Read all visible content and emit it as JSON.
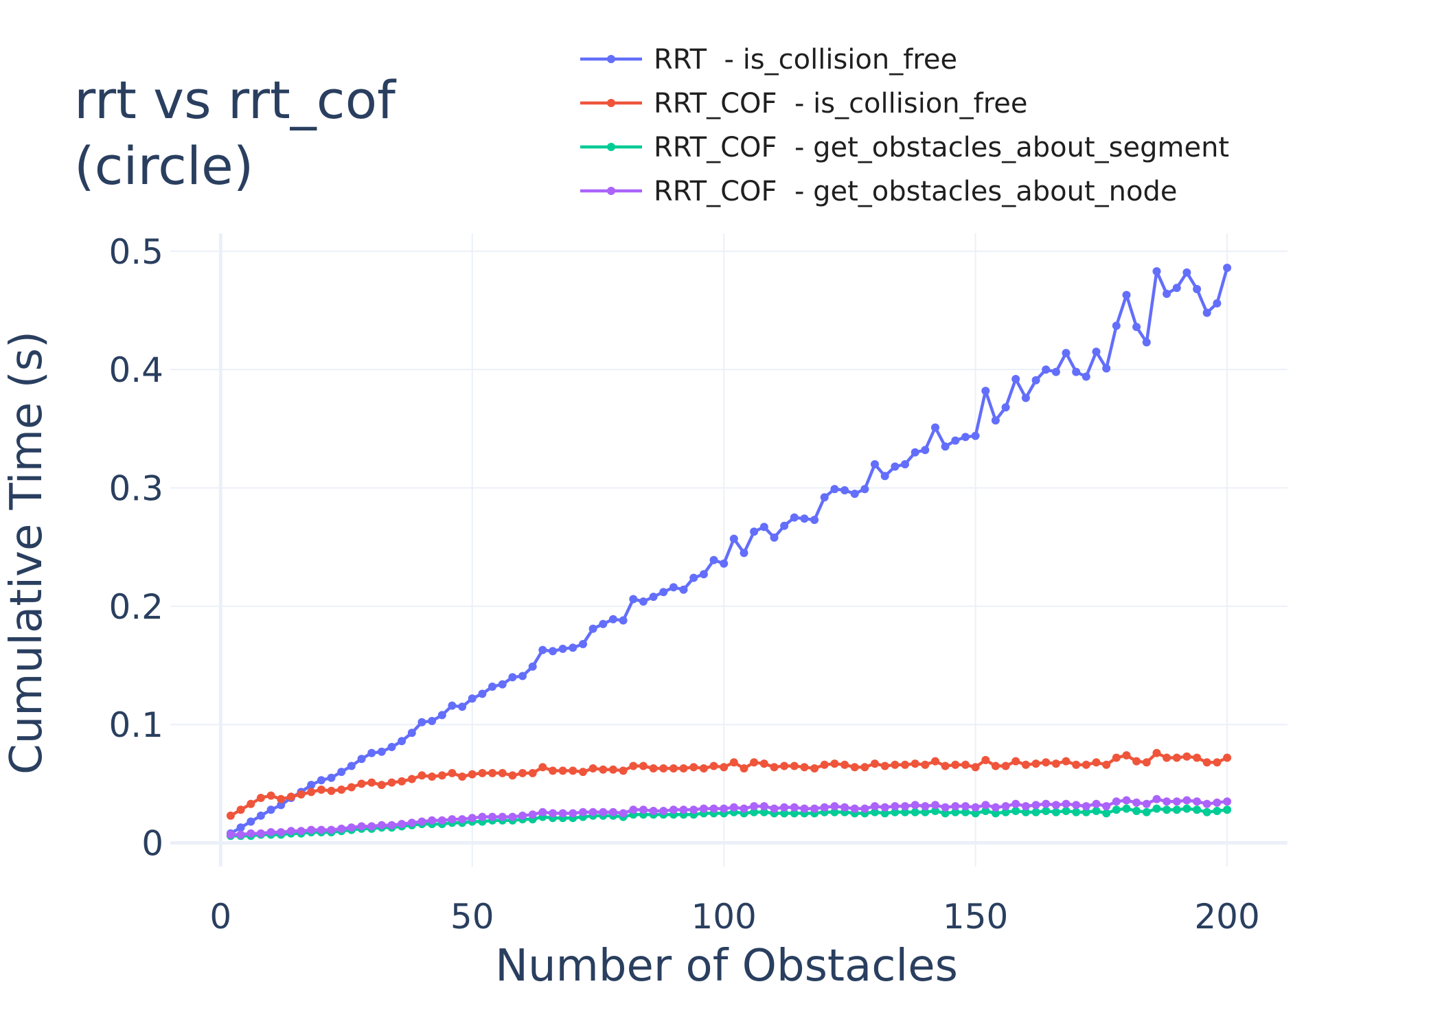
{
  "chart_data": {
    "type": "line",
    "title": [
      "rrt vs rrt_cof",
      "(circle)"
    ],
    "xlabel": "Number of Obstacles",
    "ylabel": "Cumulative Time (s)",
    "xlim": [
      -10,
      212
    ],
    "ylim": [
      -0.02,
      0.515
    ],
    "xticks": [
      {
        "value": 0,
        "label": "0"
      },
      {
        "value": 50,
        "label": "50"
      },
      {
        "value": 100,
        "label": "100"
      },
      {
        "value": 150,
        "label": "150"
      },
      {
        "value": 200,
        "label": "200"
      }
    ],
    "yticks": [
      {
        "value": 0,
        "label": "0"
      },
      {
        "value": 0.1,
        "label": "0.1"
      },
      {
        "value": 0.2,
        "label": "0.2"
      },
      {
        "value": 0.3,
        "label": "0.3"
      },
      {
        "value": 0.4,
        "label": "0.4"
      },
      {
        "value": 0.5,
        "label": "0.5"
      }
    ],
    "grid": true,
    "legend_position": "top",
    "x": [
      2,
      4,
      6,
      8,
      10,
      12,
      14,
      16,
      18,
      20,
      22,
      24,
      26,
      28,
      30,
      32,
      34,
      36,
      38,
      40,
      42,
      44,
      46,
      48,
      50,
      52,
      54,
      56,
      58,
      60,
      62,
      64,
      66,
      68,
      70,
      72,
      74,
      76,
      78,
      80,
      82,
      84,
      86,
      88,
      90,
      92,
      94,
      96,
      98,
      100,
      102,
      104,
      106,
      108,
      110,
      112,
      114,
      116,
      118,
      120,
      122,
      124,
      126,
      128,
      130,
      132,
      134,
      136,
      138,
      140,
      142,
      144,
      146,
      148,
      150,
      152,
      154,
      156,
      158,
      160,
      162,
      164,
      166,
      168,
      170,
      172,
      174,
      176,
      178,
      180,
      182,
      184,
      186,
      188,
      190,
      192,
      194,
      196,
      198,
      200
    ],
    "series": [
      {
        "name": "RRT  - is_collision_free",
        "color": "#636efa",
        "values": [
          0.008,
          0.013,
          0.018,
          0.023,
          0.028,
          0.032,
          0.038,
          0.043,
          0.049,
          0.053,
          0.055,
          0.06,
          0.065,
          0.071,
          0.076,
          0.077,
          0.081,
          0.086,
          0.093,
          0.102,
          0.103,
          0.108,
          0.116,
          0.115,
          0.122,
          0.126,
          0.132,
          0.134,
          0.14,
          0.141,
          0.149,
          0.163,
          0.162,
          0.164,
          0.165,
          0.168,
          0.181,
          0.185,
          0.189,
          0.188,
          0.206,
          0.204,
          0.208,
          0.212,
          0.216,
          0.214,
          0.224,
          0.227,
          0.239,
          0.236,
          0.257,
          0.245,
          0.263,
          0.267,
          0.258,
          0.268,
          0.275,
          0.274,
          0.273,
          0.292,
          0.299,
          0.298,
          0.295,
          0.299,
          0.32,
          0.31,
          0.318,
          0.32,
          0.33,
          0.332,
          0.351,
          0.335,
          0.34,
          0.343,
          0.344,
          0.382,
          0.357,
          0.368,
          0.392,
          0.376,
          0.391,
          0.4,
          0.398,
          0.414,
          0.398,
          0.394,
          0.415,
          0.401,
          0.437,
          0.463,
          0.436,
          0.423,
          0.483,
          0.464,
          0.469,
          0.482,
          0.468,
          0.448,
          0.456,
          0.486
        ]
      },
      {
        "name": "RRT_COF  - is_collision_free",
        "color": "#ef553b",
        "values": [
          0.023,
          0.028,
          0.033,
          0.038,
          0.04,
          0.037,
          0.039,
          0.041,
          0.043,
          0.045,
          0.044,
          0.045,
          0.047,
          0.05,
          0.051,
          0.049,
          0.051,
          0.052,
          0.054,
          0.057,
          0.056,
          0.057,
          0.059,
          0.056,
          0.058,
          0.059,
          0.059,
          0.059,
          0.057,
          0.059,
          0.059,
          0.064,
          0.061,
          0.061,
          0.061,
          0.06,
          0.063,
          0.062,
          0.062,
          0.061,
          0.065,
          0.065,
          0.063,
          0.063,
          0.063,
          0.063,
          0.064,
          0.063,
          0.065,
          0.064,
          0.068,
          0.063,
          0.068,
          0.067,
          0.064,
          0.065,
          0.065,
          0.064,
          0.063,
          0.066,
          0.067,
          0.066,
          0.064,
          0.064,
          0.067,
          0.065,
          0.066,
          0.066,
          0.067,
          0.066,
          0.069,
          0.065,
          0.066,
          0.066,
          0.064,
          0.07,
          0.065,
          0.065,
          0.069,
          0.066,
          0.067,
          0.068,
          0.067,
          0.069,
          0.066,
          0.066,
          0.068,
          0.066,
          0.072,
          0.074,
          0.069,
          0.068,
          0.076,
          0.072,
          0.072,
          0.073,
          0.072,
          0.068,
          0.068,
          0.072
        ]
      },
      {
        "name": "RRT_COF  - get_obstacles_about_segment",
        "color": "#00cc96",
        "values": [
          0.006,
          0.006,
          0.006,
          0.007,
          0.007,
          0.007,
          0.008,
          0.008,
          0.009,
          0.009,
          0.009,
          0.01,
          0.011,
          0.012,
          0.012,
          0.013,
          0.013,
          0.014,
          0.015,
          0.016,
          0.016,
          0.016,
          0.017,
          0.017,
          0.018,
          0.018,
          0.019,
          0.019,
          0.019,
          0.02,
          0.02,
          0.022,
          0.021,
          0.021,
          0.021,
          0.022,
          0.023,
          0.023,
          0.023,
          0.022,
          0.024,
          0.024,
          0.024,
          0.024,
          0.024,
          0.024,
          0.024,
          0.025,
          0.025,
          0.025,
          0.026,
          0.025,
          0.026,
          0.026,
          0.025,
          0.025,
          0.025,
          0.025,
          0.025,
          0.026,
          0.026,
          0.026,
          0.025,
          0.025,
          0.026,
          0.025,
          0.026,
          0.026,
          0.026,
          0.026,
          0.027,
          0.025,
          0.026,
          0.026,
          0.025,
          0.027,
          0.025,
          0.026,
          0.027,
          0.026,
          0.026,
          0.027,
          0.026,
          0.027,
          0.026,
          0.026,
          0.027,
          0.025,
          0.028,
          0.029,
          0.027,
          0.026,
          0.029,
          0.028,
          0.028,
          0.029,
          0.028,
          0.026,
          0.027,
          0.028
        ]
      },
      {
        "name": "RRT_COF  - get_obstacles_about_node",
        "color": "#ab63fa",
        "values": [
          0.007,
          0.007,
          0.008,
          0.008,
          0.009,
          0.009,
          0.01,
          0.01,
          0.011,
          0.011,
          0.011,
          0.012,
          0.013,
          0.014,
          0.014,
          0.015,
          0.015,
          0.016,
          0.017,
          0.018,
          0.019,
          0.019,
          0.02,
          0.02,
          0.021,
          0.022,
          0.022,
          0.022,
          0.022,
          0.023,
          0.024,
          0.026,
          0.025,
          0.025,
          0.025,
          0.026,
          0.026,
          0.026,
          0.026,
          0.025,
          0.028,
          0.028,
          0.027,
          0.027,
          0.028,
          0.028,
          0.028,
          0.029,
          0.029,
          0.029,
          0.03,
          0.029,
          0.031,
          0.031,
          0.029,
          0.03,
          0.03,
          0.029,
          0.029,
          0.03,
          0.031,
          0.03,
          0.029,
          0.029,
          0.031,
          0.03,
          0.031,
          0.031,
          0.032,
          0.031,
          0.032,
          0.03,
          0.031,
          0.031,
          0.03,
          0.032,
          0.03,
          0.031,
          0.033,
          0.031,
          0.032,
          0.033,
          0.032,
          0.033,
          0.032,
          0.031,
          0.033,
          0.031,
          0.035,
          0.036,
          0.034,
          0.033,
          0.037,
          0.035,
          0.035,
          0.036,
          0.035,
          0.033,
          0.034,
          0.035
        ]
      }
    ]
  }
}
